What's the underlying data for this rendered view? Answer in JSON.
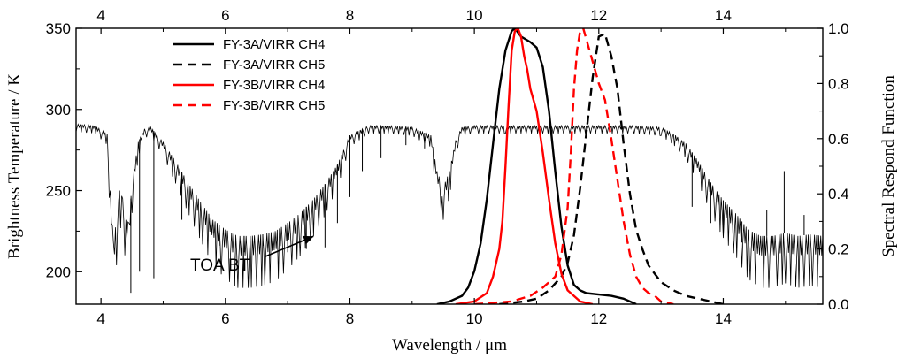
{
  "chart_data": {
    "type": "line",
    "xlabel": "Wavelength / μm",
    "ylabel": "Brightness Temperature / K",
    "y2label": "Spectral Respond Function",
    "xlim": [
      3.6,
      15.6
    ],
    "ylim": [
      180,
      350
    ],
    "y2lim": [
      0,
      1.0
    ],
    "xticks_bottom": [
      "4",
      "6",
      "8",
      "10",
      "12",
      "14"
    ],
    "xticks_top": [
      "4",
      "6",
      "8",
      "10",
      "12",
      "14"
    ],
    "yticks_left": [
      "200",
      "250",
      "300",
      "350"
    ],
    "yticks_right": [
      "0.0",
      "0.2",
      "0.4",
      "0.6",
      "0.8",
      "1.0"
    ],
    "annotation": {
      "text": "TOA BT",
      "x": 7.5,
      "y": 224
    },
    "legend_position": "top-center",
    "series": [
      {
        "name": "TOA BT",
        "axis": "left",
        "color": "#000000",
        "dash": "solid",
        "width": 0.8,
        "in_legend": false,
        "x": [
          3.6,
          3.9,
          4.1,
          4.15,
          4.2,
          4.25,
          4.3,
          4.35,
          4.4,
          4.45,
          4.5,
          4.6,
          4.7,
          4.8,
          5.0,
          5.2,
          5.4,
          5.6,
          5.8,
          6.0,
          6.2,
          6.4,
          6.6,
          6.8,
          7.0,
          7.2,
          7.4,
          7.6,
          7.8,
          8.0,
          8.3,
          8.6,
          9.0,
          9.3,
          9.4,
          9.5,
          9.6,
          9.7,
          9.8,
          10.0,
          10.5,
          11.0,
          11.5,
          12.0,
          12.5,
          13.0,
          13.2,
          13.4,
          13.6,
          13.8,
          14.0,
          14.2,
          14.4,
          14.6,
          14.8,
          15.0,
          15.2,
          15.4,
          15.6
        ],
        "y": [
          291,
          290,
          285,
          250,
          218,
          232,
          250,
          245,
          232,
          230,
          255,
          280,
          288,
          289,
          280,
          268,
          255,
          243,
          232,
          226,
          222,
          222,
          223,
          225,
          230,
          236,
          244,
          254,
          266,
          284,
          290,
          290,
          289,
          284,
          262,
          252,
          262,
          281,
          289,
          290,
          290,
          290,
          290,
          290,
          290,
          289,
          285,
          279,
          268,
          255,
          244,
          236,
          226,
          222,
          222,
          224,
          222,
          223,
          222
        ],
        "spikes": [
          {
            "x": 4.48,
            "y": 187
          },
          {
            "x": 4.62,
            "y": 200
          },
          {
            "x": 4.85,
            "y": 196
          },
          {
            "x": 5.3,
            "y": 232
          },
          {
            "x": 5.9,
            "y": 216
          },
          {
            "x": 6.3,
            "y": 212
          },
          {
            "x": 6.6,
            "y": 216
          },
          {
            "x": 7.0,
            "y": 212
          },
          {
            "x": 7.3,
            "y": 214
          },
          {
            "x": 7.6,
            "y": 215
          },
          {
            "x": 7.8,
            "y": 230
          },
          {
            "x": 8.0,
            "y": 246
          },
          {
            "x": 8.2,
            "y": 262
          },
          {
            "x": 8.5,
            "y": 270
          },
          {
            "x": 8.9,
            "y": 278
          },
          {
            "x": 9.2,
            "y": 276
          },
          {
            "x": 13.5,
            "y": 240
          },
          {
            "x": 13.8,
            "y": 230
          },
          {
            "x": 14.0,
            "y": 222
          },
          {
            "x": 14.3,
            "y": 218
          },
          {
            "x": 14.7,
            "y": 238
          },
          {
            "x": 14.98,
            "y": 262
          },
          {
            "x": 15.3,
            "y": 235
          }
        ]
      },
      {
        "name": "FY-3A/VIRR CH4",
        "axis": "right",
        "color": "#000000",
        "dash": "solid",
        "width": 2.4,
        "in_legend": true,
        "x": [
          9.4,
          9.6,
          9.8,
          9.9,
          10.0,
          10.1,
          10.2,
          10.3,
          10.4,
          10.5,
          10.6,
          10.65,
          10.75,
          10.9,
          11.0,
          11.1,
          11.2,
          11.3,
          11.4,
          11.5,
          11.6,
          11.7,
          11.8,
          12.0,
          12.2,
          12.4,
          12.6
        ],
        "y": [
          0.0,
          0.01,
          0.03,
          0.06,
          0.12,
          0.22,
          0.38,
          0.58,
          0.78,
          0.92,
          0.99,
          1.0,
          0.97,
          0.95,
          0.93,
          0.86,
          0.7,
          0.48,
          0.28,
          0.14,
          0.07,
          0.05,
          0.04,
          0.035,
          0.03,
          0.02,
          0.0
        ]
      },
      {
        "name": "FY-3A/VIRR CH5",
        "axis": "right",
        "color": "#000000",
        "dash": "dashed",
        "width": 2.4,
        "in_legend": true,
        "x": [
          10.4,
          10.8,
          11.0,
          11.2,
          11.4,
          11.5,
          11.6,
          11.7,
          11.8,
          11.9,
          12.0,
          12.1,
          12.2,
          12.3,
          12.4,
          12.5,
          12.6,
          12.7,
          12.8,
          13.0,
          13.2,
          13.4,
          13.6,
          13.8,
          14.0
        ],
        "y": [
          0.0,
          0.01,
          0.02,
          0.05,
          0.1,
          0.15,
          0.25,
          0.42,
          0.62,
          0.82,
          0.97,
          0.98,
          0.9,
          0.78,
          0.58,
          0.4,
          0.27,
          0.2,
          0.14,
          0.08,
          0.05,
          0.03,
          0.02,
          0.01,
          0.0
        ]
      },
      {
        "name": "FY-3B/VIRR CH4",
        "axis": "right",
        "color": "#ff0000",
        "dash": "solid",
        "width": 2.4,
        "in_legend": true,
        "x": [
          9.7,
          10.0,
          10.2,
          10.3,
          10.4,
          10.45,
          10.5,
          10.55,
          10.6,
          10.65,
          10.7,
          10.75,
          10.8,
          10.85,
          10.9,
          11.0,
          11.1,
          11.2,
          11.3,
          11.4,
          11.5,
          11.7,
          11.9
        ],
        "y": [
          0.0,
          0.01,
          0.04,
          0.1,
          0.2,
          0.3,
          0.5,
          0.72,
          0.92,
          0.99,
          1.0,
          0.97,
          0.9,
          0.85,
          0.78,
          0.7,
          0.55,
          0.38,
          0.22,
          0.11,
          0.05,
          0.01,
          0.0
        ]
      },
      {
        "name": "FY-3B/VIRR CH5",
        "axis": "right",
        "color": "#ff0000",
        "dash": "dashed",
        "width": 2.4,
        "in_legend": true,
        "x": [
          10.0,
          10.6,
          10.9,
          11.1,
          11.3,
          11.4,
          11.5,
          11.55,
          11.6,
          11.65,
          11.7,
          11.75,
          11.8,
          11.9,
          12.0,
          12.1,
          12.2,
          12.3,
          12.4,
          12.5,
          12.6,
          12.7,
          12.8,
          12.9,
          13.0,
          13.2
        ],
        "y": [
          0.0,
          0.01,
          0.03,
          0.06,
          0.1,
          0.18,
          0.35,
          0.55,
          0.78,
          0.92,
          0.99,
          1.0,
          0.96,
          0.88,
          0.8,
          0.74,
          0.6,
          0.45,
          0.3,
          0.18,
          0.1,
          0.06,
          0.04,
          0.03,
          0.01,
          0.0
        ]
      }
    ]
  }
}
